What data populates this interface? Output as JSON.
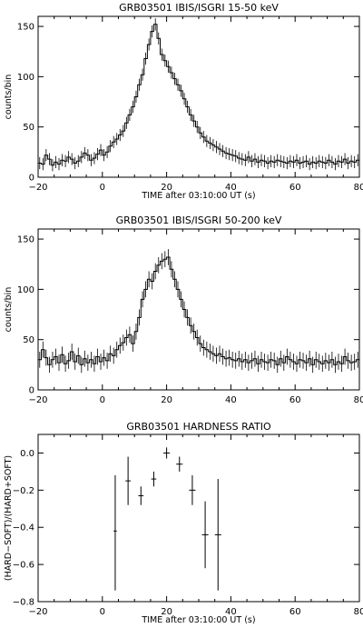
{
  "chart_data": [
    {
      "type": "line",
      "title": "GRB03501      IBIS/ISGRI    15-50 keV",
      "xlabel": "TIME after  03:10:00 UT   (s)",
      "ylabel": "counts/bin",
      "xlim": [
        -20,
        80
      ],
      "ylim": [
        0,
        160
      ],
      "xticks": [
        -20,
        0,
        20,
        40,
        60,
        80
      ],
      "xtick_labels": [
        "−20",
        "0",
        "20",
        "40",
        "60",
        "80"
      ],
      "yticks": [
        0,
        50,
        100,
        150
      ],
      "ytick_labels": [
        "0",
        "50",
        "100",
        "150"
      ],
      "grid": false,
      "series": [
        {
          "style": "histogram-with-error-bars",
          "x": [
            -20,
            -19,
            -18,
            -17,
            -16,
            -15,
            -14,
            -13,
            -12,
            -11,
            -10,
            -9,
            -8,
            -7,
            -6,
            -5,
            -4,
            -3,
            -2,
            -1,
            0,
            1,
            2,
            3,
            4,
            5,
            6,
            7,
            8,
            9,
            10,
            11,
            12,
            13,
            14,
            15,
            16,
            17,
            18,
            19,
            20,
            21,
            22,
            23,
            24,
            25,
            26,
            27,
            28,
            29,
            30,
            31,
            32,
            33,
            34,
            35,
            36,
            37,
            38,
            39,
            40,
            41,
            42,
            43,
            44,
            45,
            46,
            47,
            48,
            49,
            50,
            51,
            52,
            53,
            54,
            55,
            56,
            57,
            58,
            59,
            60,
            61,
            62,
            63,
            64,
            65,
            66,
            67,
            68,
            69,
            70,
            71,
            72,
            73,
            74,
            75,
            76,
            77,
            78,
            79
          ],
          "y": [
            14,
            13,
            22,
            18,
            12,
            15,
            13,
            17,
            16,
            20,
            18,
            14,
            16,
            20,
            24,
            22,
            17,
            19,
            23,
            27,
            22,
            25,
            31,
            35,
            38,
            42,
            46,
            54,
            62,
            70,
            80,
            92,
            102,
            118,
            132,
            145,
            152,
            138,
            122,
            116,
            110,
            104,
            98,
            92,
            86,
            78,
            70,
            62,
            56,
            50,
            44,
            40,
            36,
            34,
            32,
            30,
            28,
            26,
            24,
            23,
            22,
            21,
            19,
            18,
            17,
            20,
            16,
            18,
            15,
            17,
            16,
            14,
            16,
            15,
            17,
            16,
            15,
            14,
            16,
            15,
            17,
            14,
            15,
            16,
            13,
            15,
            14,
            16,
            15,
            14,
            17,
            15,
            13,
            16,
            15,
            18,
            14,
            16,
            15,
            17
          ],
          "error": 6
        }
      ]
    },
    {
      "type": "line",
      "title": "GRB03501      IBIS/ISGRI    50-200 keV",
      "xlabel": "",
      "ylabel": "counts/bin",
      "xlim": [
        -20,
        80
      ],
      "ylim": [
        0,
        160
      ],
      "xticks": [
        -20,
        0,
        20,
        40,
        60,
        80
      ],
      "xtick_labels": [
        "−20",
        "0",
        "20",
        "40",
        "60",
        "80"
      ],
      "yticks": [
        0,
        50,
        100,
        150
      ],
      "ytick_labels": [
        "0",
        "50",
        "100",
        "150"
      ],
      "grid": false,
      "series": [
        {
          "style": "histogram-with-error-bars",
          "x": [
            -20,
            -19,
            -18,
            -17,
            -16,
            -15,
            -14,
            -13,
            -12,
            -11,
            -10,
            -9,
            -8,
            -7,
            -6,
            -5,
            -4,
            -3,
            -2,
            -1,
            0,
            1,
            2,
            3,
            4,
            5,
            6,
            7,
            8,
            9,
            10,
            11,
            12,
            13,
            14,
            15,
            16,
            17,
            18,
            19,
            20,
            21,
            22,
            23,
            24,
            25,
            26,
            27,
            28,
            29,
            30,
            31,
            32,
            33,
            34,
            35,
            36,
            37,
            38,
            39,
            40,
            41,
            42,
            43,
            44,
            45,
            46,
            47,
            48,
            49,
            50,
            51,
            52,
            53,
            54,
            55,
            56,
            57,
            58,
            59,
            60,
            61,
            62,
            63,
            64,
            65,
            66,
            67,
            68,
            69,
            70,
            71,
            72,
            73,
            74,
            75,
            76,
            77,
            78,
            79
          ],
          "y": [
            30,
            40,
            32,
            25,
            30,
            33,
            27,
            35,
            26,
            29,
            38,
            28,
            34,
            25,
            31,
            27,
            30,
            26,
            33,
            28,
            32,
            29,
            36,
            34,
            40,
            44,
            47,
            52,
            55,
            46,
            58,
            72,
            90,
            100,
            110,
            108,
            118,
            124,
            128,
            130,
            132,
            120,
            110,
            100,
            90,
            80,
            72,
            64,
            58,
            52,
            46,
            42,
            40,
            38,
            36,
            34,
            36,
            33,
            31,
            32,
            30,
            29,
            31,
            28,
            30,
            27,
            29,
            31,
            26,
            30,
            28,
            27,
            30,
            29,
            25,
            31,
            27,
            33,
            30,
            28,
            26,
            30,
            29,
            27,
            31,
            25,
            30,
            28,
            26,
            29,
            27,
            30,
            25,
            28,
            26,
            33,
            29,
            27,
            28,
            30
          ],
          "error": 8
        }
      ]
    },
    {
      "type": "scatter",
      "title": "GRB03501       HARDNESS RATIO",
      "xlabel": "TIME after  03:10:00 UT   (s)",
      "ylabel": "(HARD−SOFT)/(HARD+SOFT)",
      "xlim": [
        -20,
        80
      ],
      "ylim": [
        -0.8,
        0.1
      ],
      "xticks": [
        -20,
        0,
        20,
        40,
        60,
        80
      ],
      "xtick_labels": [
        "−20",
        "0",
        "20",
        "40",
        "60",
        "80"
      ],
      "yticks": [
        -0.8,
        -0.6,
        -0.4,
        -0.2,
        0.0
      ],
      "ytick_labels": [
        "−0.8",
        "−0.6",
        "−0.4",
        "−0.2",
        "0.0"
      ],
      "grid": false,
      "series": [
        {
          "style": "points-with-error-bars",
          "points": [
            {
              "x": 4,
              "y": -0.42,
              "xerr": 0.5,
              "yerr_low": 0.32,
              "yerr_high": 0.3
            },
            {
              "x": 8,
              "y": -0.15,
              "xerr": 0.8,
              "yerr_low": 0.13,
              "yerr_high": 0.13
            },
            {
              "x": 12,
              "y": -0.23,
              "xerr": 0.8,
              "yerr_low": 0.05,
              "yerr_high": 0.05
            },
            {
              "x": 16,
              "y": -0.14,
              "xerr": 0.8,
              "yerr_low": 0.04,
              "yerr_high": 0.04
            },
            {
              "x": 20,
              "y": 0.0,
              "xerr": 1.0,
              "yerr_low": 0.03,
              "yerr_high": 0.03
            },
            {
              "x": 24,
              "y": -0.06,
              "xerr": 1.0,
              "yerr_low": 0.04,
              "yerr_high": 0.04
            },
            {
              "x": 28,
              "y": -0.2,
              "xerr": 1.0,
              "yerr_low": 0.08,
              "yerr_high": 0.08
            },
            {
              "x": 32,
              "y": -0.44,
              "xerr": 1.0,
              "yerr_low": 0.18,
              "yerr_high": 0.18
            },
            {
              "x": 36,
              "y": -0.44,
              "xerr": 1.0,
              "yerr_low": 0.3,
              "yerr_high": 0.3
            }
          ]
        }
      ]
    }
  ]
}
